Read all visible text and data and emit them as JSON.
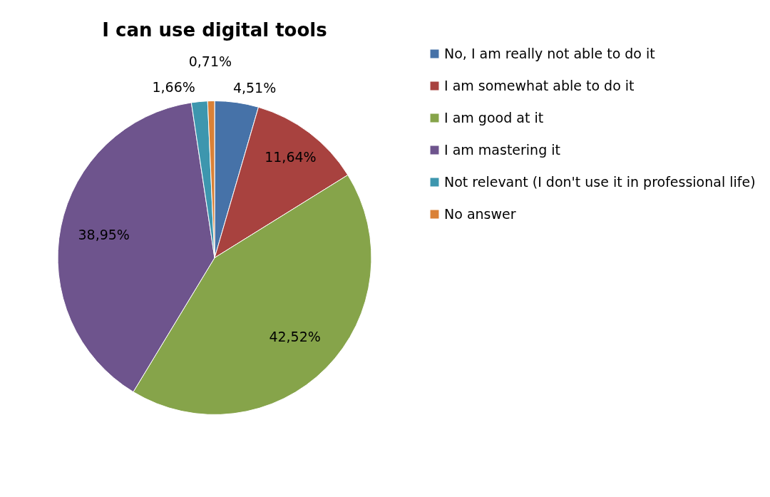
{
  "chart_data": {
    "type": "pie",
    "title": "I can use digital tools",
    "categories": [
      "No, I am really not able to do it",
      "I am somewhat able to do it",
      "I am good at it",
      "I am mastering it",
      "Not relevant (I don't use it in professional life)",
      "No answer"
    ],
    "values": [
      4.51,
      11.64,
      42.52,
      38.95,
      1.66,
      0.71
    ],
    "colors": [
      "#4672a8",
      "#a8423f",
      "#86a44a",
      "#6e548d",
      "#3d96ae",
      "#da8137"
    ],
    "value_labels": [
      "4,51%",
      "11,64%",
      "42,52%",
      "38,95%",
      "1,66%",
      "0,71%"
    ],
    "legend": "right"
  }
}
